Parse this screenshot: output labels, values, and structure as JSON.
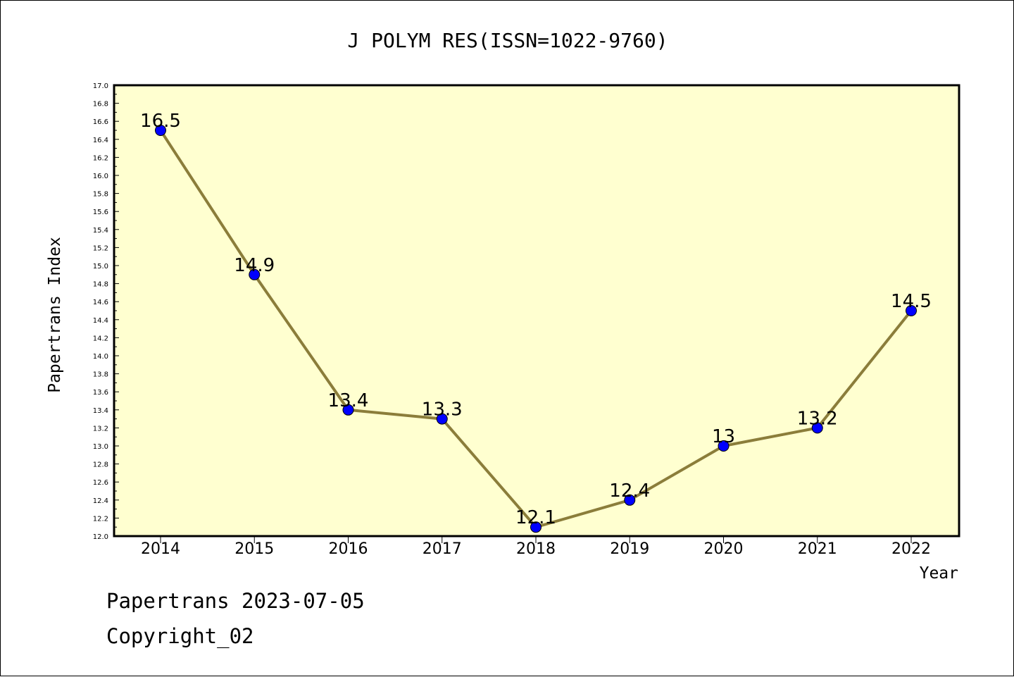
{
  "chart_data": {
    "type": "line",
    "title": "J POLYM RES(ISSN=1022-9760)",
    "xlabel": "Year",
    "ylabel": "Papertrans Index",
    "categories": [
      "2014",
      "2015",
      "2016",
      "2017",
      "2018",
      "2019",
      "2020",
      "2021",
      "2022"
    ],
    "series": [
      {
        "values": [
          16.5,
          14.9,
          13.4,
          13.3,
          12.1,
          12.4,
          13,
          13.2,
          14.5
        ]
      }
    ],
    "data_labels": [
      "16.5",
      "14.9",
      "13.4",
      "13.3",
      "12.1",
      "12.4",
      "13",
      "13.2",
      "14.5"
    ],
    "ylim": [
      12.0,
      17.0
    ],
    "y_ticks": [
      "12.0",
      "12.2",
      "12.4",
      "12.6",
      "12.8",
      "13.0",
      "13.2",
      "13.4",
      "13.6",
      "13.8",
      "14.0",
      "14.2",
      "14.4",
      "14.6",
      "14.8",
      "15.0",
      "15.2",
      "15.4",
      "15.6",
      "15.8",
      "16.0",
      "16.2",
      "16.4",
      "16.6",
      "16.8",
      "17.0"
    ],
    "grid": false,
    "colors": {
      "plot_background": "#ffffd0",
      "line": "#8b7d3a",
      "marker": "#0000ff"
    }
  },
  "footer": {
    "line1": "Papertrans 2023-07-05",
    "line2": "Copyright_02"
  }
}
